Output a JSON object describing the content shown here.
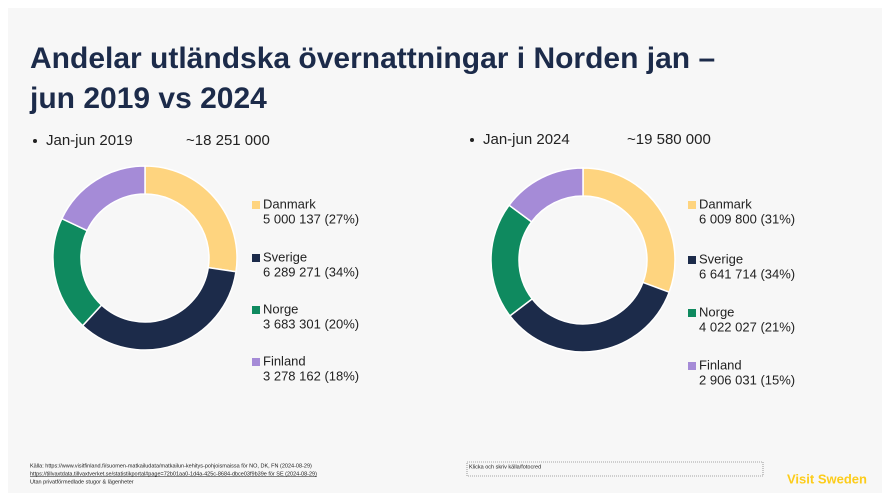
{
  "title_lines": [
    "Andelar utländska övernattningar i Norden jan –",
    "jun 2019 vs 2024"
  ],
  "chart_data": [
    {
      "type": "donut",
      "title": "Jan-jun 2019",
      "subtitle": "~18 251 000",
      "categories": [
        "Danmark",
        "Sverige",
        "Norge",
        "Finland"
      ],
      "values": [
        5000137,
        6289271,
        3683301,
        3278162
      ],
      "value_labels": [
        "5 000 137 (27%)",
        "6 289 271 (34%)",
        "3 683 301 (20%)",
        "3 278 162 (18%)"
      ],
      "colors": [
        "#fed47f",
        "#1c2b4a",
        "#0f8a5f",
        "#a58bd7"
      ]
    },
    {
      "type": "donut",
      "title": "Jan-jun 2024",
      "subtitle": "~19 580 000",
      "categories": [
        "Danmark",
        "Sverige",
        "Norge",
        "Finland"
      ],
      "values": [
        6009800,
        6641714,
        4022027,
        2906031
      ],
      "value_labels": [
        "6 009 800 (31%)",
        "6 641 714 (34%)",
        "4 022 027 (21%)",
        "2 906 031 (15%)"
      ],
      "colors": [
        "#fed47f",
        "#1c2b4a",
        "#0f8a5f",
        "#a58bd7"
      ]
    }
  ],
  "footer": {
    "sources": [
      "Källa: https://www.visitfinland.fi/suomen-matkailudata/matkailun-kehitys-pohjoismaissa för NO, DK, FN (2024-08-29)",
      "https://tillvaxtdata.tillvaxtverket.se/statistikportal#page=72b01aa0-1d4a-425c-8684-dbce03f9b39e för SE (2024-08-29)",
      "Utan privatförmedlade stugor & lägenheter"
    ],
    "placeholder": "Klicka och skriv källa/fotocred",
    "brand": "Visit Sweden"
  }
}
